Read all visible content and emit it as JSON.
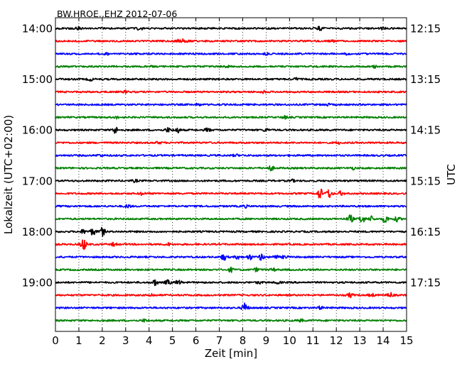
{
  "chart_data": {
    "type": "line",
    "title": "BW.HROE..EHZ 2012-07-06",
    "xlabel": "Zeit  [min]",
    "ylabel": "Lokalzeit (UTC+02:00)",
    "ylabel_right": "UTC",
    "xlim": [
      0,
      15
    ],
    "x_ticks": [
      0,
      1,
      2,
      3,
      4,
      5,
      6,
      7,
      8,
      9,
      10,
      11,
      12,
      13,
      14,
      15
    ],
    "x_grid": "dotted",
    "left_ticks": [
      {
        "row": 0,
        "label": "14:00"
      },
      {
        "row": 4,
        "label": "15:00"
      },
      {
        "row": 8,
        "label": "16:00"
      },
      {
        "row": 12,
        "label": "17:00"
      },
      {
        "row": 16,
        "label": "18:00"
      },
      {
        "row": 20,
        "label": "19:00"
      }
    ],
    "right_ticks": [
      {
        "row": 0,
        "label": "12:15"
      },
      {
        "row": 4,
        "label": "13:15"
      },
      {
        "row": 8,
        "label": "14:15"
      },
      {
        "row": 12,
        "label": "15:15"
      },
      {
        "row": 16,
        "label": "16:15"
      },
      {
        "row": 20,
        "label": "17:15"
      }
    ],
    "trace_colors": [
      "#000000",
      "#ff0000",
      "#0000ff",
      "#008000"
    ],
    "traces": [
      {
        "row": 0,
        "color": "#000000",
        "bursts": [
          [
            1.0,
            0.7
          ],
          [
            3.6,
            0.8
          ],
          [
            11.3,
            0.9
          ],
          [
            14.0,
            0.6
          ]
        ]
      },
      {
        "row": 1,
        "color": "#ff0000",
        "bursts": [
          [
            5.5,
            1.6
          ],
          [
            5.2,
            0.8
          ],
          [
            11.8,
            0.6
          ]
        ]
      },
      {
        "row": 2,
        "color": "#0000ff",
        "bursts": [
          [
            2.2,
            0.6
          ],
          [
            9.0,
            0.5
          ],
          [
            12.5,
            0.5
          ]
        ]
      },
      {
        "row": 3,
        "color": "#008000",
        "bursts": [
          [
            4.2,
            0.6
          ],
          [
            7.3,
            0.5
          ],
          [
            13.6,
            0.6
          ]
        ]
      },
      {
        "row": 4,
        "color": "#000000",
        "bursts": [
          [
            1.5,
            0.7
          ],
          [
            10.3,
            0.6
          ]
        ]
      },
      {
        "row": 5,
        "color": "#ff0000",
        "bursts": [
          [
            3.0,
            0.5
          ],
          [
            8.9,
            0.5
          ]
        ]
      },
      {
        "row": 6,
        "color": "#0000ff",
        "bursts": [
          [
            6.1,
            0.5
          ],
          [
            11.6,
            0.5
          ]
        ]
      },
      {
        "row": 7,
        "color": "#008000",
        "bursts": [
          [
            2.6,
            0.5
          ],
          [
            9.8,
            0.6
          ]
        ]
      },
      {
        "row": 8,
        "color": "#000000",
        "bursts": [
          [
            2.55,
            1.8
          ],
          [
            4.8,
            1.1
          ],
          [
            5.2,
            1.4
          ],
          [
            6.5,
            1.0
          ],
          [
            9.0,
            0.7
          ]
        ]
      },
      {
        "row": 9,
        "color": "#ff0000",
        "bursts": [
          [
            4.4,
            0.5
          ],
          [
            12.1,
            0.5
          ]
        ]
      },
      {
        "row": 10,
        "color": "#0000ff",
        "bursts": [
          [
            1.9,
            0.5
          ],
          [
            7.7,
            0.5
          ]
        ]
      },
      {
        "row": 11,
        "color": "#008000",
        "bursts": [
          [
            9.2,
            1.3
          ],
          [
            12.7,
            0.6
          ]
        ]
      },
      {
        "row": 12,
        "color": "#000000",
        "bursts": [
          [
            3.4,
            0.6
          ],
          [
            10.1,
            0.6
          ]
        ]
      },
      {
        "row": 13,
        "color": "#ff0000",
        "bursts": [
          [
            11.3,
            2.8
          ],
          [
            11.7,
            2.4
          ],
          [
            12.2,
            1.0
          ],
          [
            3.7,
            0.8
          ]
        ]
      },
      {
        "row": 14,
        "color": "#0000ff",
        "bursts": [
          [
            3.1,
            0.9
          ],
          [
            8.1,
            0.6
          ]
        ]
      },
      {
        "row": 15,
        "color": "#008000",
        "bursts": [
          [
            12.6,
            2.0
          ],
          [
            13.1,
            2.2
          ],
          [
            13.5,
            1.3
          ],
          [
            14.1,
            2.0
          ],
          [
            14.6,
            1.2
          ]
        ]
      },
      {
        "row": 16,
        "color": "#000000",
        "bursts": [
          [
            1.6,
            1.8
          ],
          [
            2.0,
            2.2
          ],
          [
            1.2,
            1.0
          ]
        ]
      },
      {
        "row": 17,
        "color": "#ff0000",
        "bursts": [
          [
            1.2,
            3.0
          ],
          [
            2.5,
            0.8
          ],
          [
            4.8,
            0.7
          ]
        ]
      },
      {
        "row": 18,
        "color": "#0000ff",
        "bursts": [
          [
            7.2,
            1.6
          ],
          [
            7.8,
            1.0
          ],
          [
            8.3,
            1.3
          ],
          [
            8.8,
            1.6
          ],
          [
            9.4,
            1.0
          ],
          [
            9.8,
            0.8
          ]
        ]
      },
      {
        "row": 19,
        "color": "#008000",
        "bursts": [
          [
            7.5,
            1.1
          ],
          [
            8.6,
            0.9
          ],
          [
            9.3,
            0.7
          ]
        ]
      },
      {
        "row": 20,
        "color": "#000000",
        "bursts": [
          [
            4.25,
            1.6
          ],
          [
            4.8,
            1.3
          ],
          [
            5.25,
            1.2
          ],
          [
            8.7,
            0.6
          ],
          [
            9.5,
            0.6
          ]
        ]
      },
      {
        "row": 21,
        "color": "#ff0000",
        "bursts": [
          [
            4.1,
            0.8
          ],
          [
            12.6,
            1.1
          ],
          [
            14.3,
            1.3
          ],
          [
            13.5,
            0.8
          ]
        ]
      },
      {
        "row": 22,
        "color": "#0000ff",
        "bursts": [
          [
            8.1,
            2.6
          ],
          [
            11.3,
            0.7
          ]
        ]
      },
      {
        "row": 23,
        "color": "#008000",
        "bursts": [
          [
            3.8,
            0.6
          ],
          [
            10.5,
            0.6
          ]
        ]
      }
    ]
  }
}
